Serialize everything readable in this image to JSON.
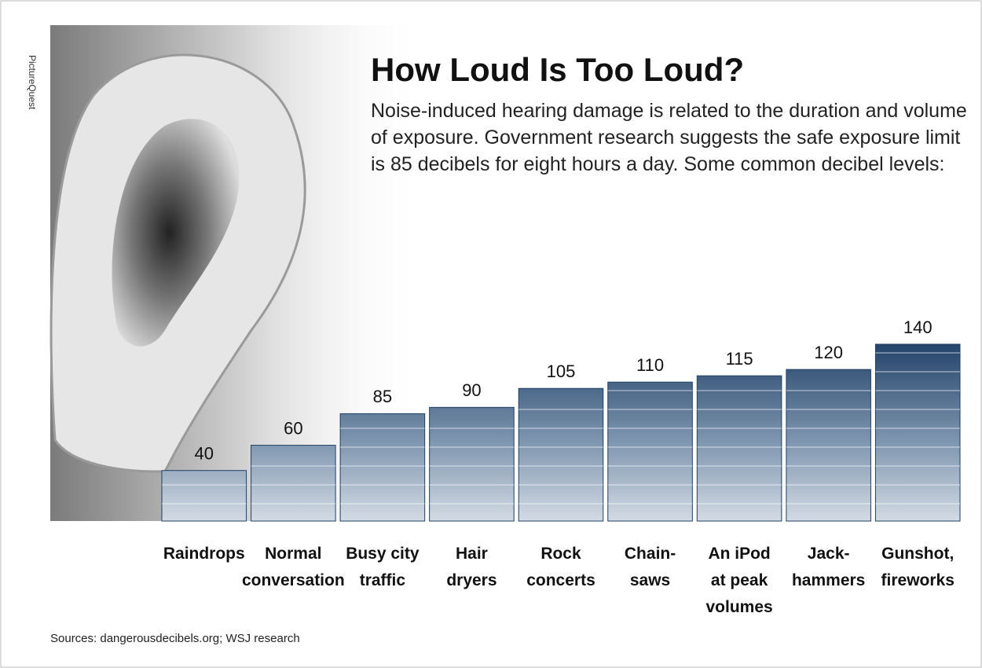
{
  "chart_data": {
    "type": "bar",
    "title": "How Loud Is Too Loud?",
    "subtitle": "Noise-induced hearing damage is related to the duration and volume of exposure. Government research suggests the safe exposure limit is 85 decibels for eight hours a day. Some common decibel levels:",
    "credit": "PictureQuest",
    "source": "Sources: dangerousdecibels.org; WSJ research",
    "categories": [
      "Raindrops",
      "Normal\nconversation",
      "Busy city\ntraffic",
      "Hair\ndryers",
      "Rock\nconcerts",
      "Chain-\nsaws",
      "An iPod\nat peak\nvolumes",
      "Jack-\nhammers",
      "Gunshot,\nfireworks"
    ],
    "values": [
      40,
      60,
      85,
      90,
      105,
      110,
      115,
      120,
      140
    ],
    "color": "#1f3f66"
  }
}
